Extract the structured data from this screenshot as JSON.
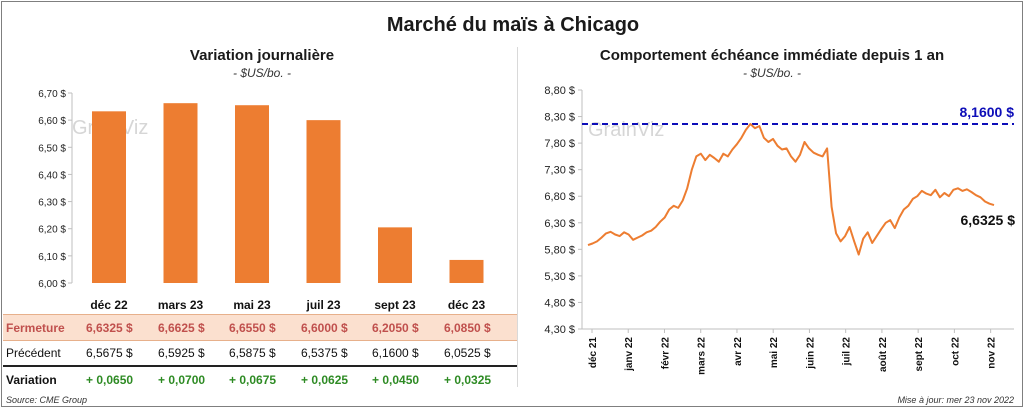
{
  "title": "Marché du maïs à Chicago",
  "left": {
    "subtitle": "Variation  journalière",
    "unit": "- $US/bo. -",
    "watermark": "GrainViz",
    "chart_data": {
      "type": "bar",
      "categories": [
        "déc 22",
        "mars 23",
        "mai 23",
        "juil 23",
        "sept 23",
        "déc 23"
      ],
      "values": [
        6.6325,
        6.6625,
        6.655,
        6.6,
        6.205,
        6.085
      ],
      "ylim": [
        6.0,
        6.7
      ],
      "yticks": [
        "6,70 $",
        "6,60 $",
        "6,50 $",
        "6,40 $",
        "6,30 $",
        "6,20 $",
        "6,10 $",
        "6,00 $"
      ],
      "color": "#ed7d31",
      "grid": false
    },
    "table": {
      "rows": [
        {
          "label": "Fermeture",
          "cells": [
            "6,6325  $",
            "6,6625  $",
            "6,6550  $",
            "6,6000  $",
            "6,2050  $",
            "6,0850  $"
          ]
        },
        {
          "label": "Précédent",
          "cells": [
            "6,5675  $",
            "6,5925  $",
            "6,5875  $",
            "6,5375  $",
            "6,1600  $",
            "6,0525  $"
          ]
        },
        {
          "label": "Variation",
          "cells": [
            "+ 0,0650",
            "+ 0,0700",
            "+ 0,0675",
            "+ 0,0625",
            "+ 0,0450",
            "+ 0,0325"
          ]
        }
      ]
    }
  },
  "right": {
    "subtitle": "Comportement  échéance immédiate depuis 1 an",
    "unit": "- $US/bo. -",
    "watermark": "GrainViz",
    "chart_data": {
      "type": "line",
      "ylim": [
        4.3,
        8.8
      ],
      "yticks": [
        "8,80 $",
        "8,30 $",
        "7,80 $",
        "7,30 $",
        "6,80 $",
        "6,30 $",
        "5,80 $",
        "5,30 $",
        "4,80 $",
        "4,30 $"
      ],
      "x_labels": [
        "déc 21",
        "janv 22",
        "févr 22",
        "mars 22",
        "avr 22",
        "mai 22",
        "juin 22",
        "juil 22",
        "août 22",
        "sept 22",
        "oct 22",
        "nov 22"
      ],
      "series": [
        {
          "color": "#ed7d31",
          "values": [
            5.88,
            5.91,
            5.95,
            6.02,
            6.1,
            6.13,
            6.08,
            6.05,
            6.12,
            6.08,
            5.98,
            6.02,
            6.06,
            6.12,
            6.15,
            6.22,
            6.32,
            6.4,
            6.55,
            6.62,
            6.58,
            6.72,
            6.95,
            7.3,
            7.55,
            7.6,
            7.48,
            7.58,
            7.52,
            7.45,
            7.6,
            7.55,
            7.68,
            7.78,
            7.9,
            8.05,
            8.16,
            8.08,
            8.12,
            7.9,
            7.82,
            7.88,
            7.75,
            7.68,
            7.7,
            7.55,
            7.45,
            7.58,
            7.82,
            7.7,
            7.62,
            7.58,
            7.55,
            7.7,
            6.6,
            6.1,
            5.95,
            6.05,
            6.22,
            5.95,
            5.7,
            6.0,
            6.12,
            5.92,
            6.05,
            6.18,
            6.3,
            6.35,
            6.2,
            6.4,
            6.55,
            6.62,
            6.75,
            6.8,
            6.9,
            6.85,
            6.82,
            6.92,
            6.78,
            6.86,
            6.8,
            6.92,
            6.95,
            6.9,
            6.93,
            6.88,
            6.82,
            6.78,
            6.7,
            6.66,
            6.6325
          ]
        }
      ],
      "reference": {
        "value": 8.16,
        "label": "8,1600 $",
        "color": "#0d0db8"
      },
      "last_label": "6,6325 $",
      "grid": false
    }
  },
  "footer": {
    "source": "Source: CME Group",
    "update": "Mise à jour: mer 23 nov 2022"
  }
}
